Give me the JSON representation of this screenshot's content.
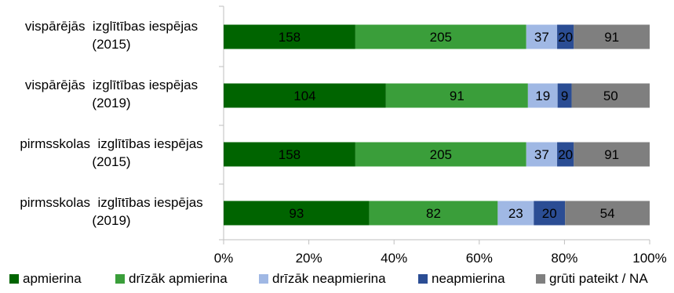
{
  "chart_data": {
    "type": "bar",
    "orientation": "horizontal",
    "stacking": "percent",
    "categories": [
      [
        "vispārējās  izglītības iespējas",
        "(2015)"
      ],
      [
        "vispārējās  izglītības iespējas",
        "(2019)"
      ],
      [
        "pirmsskolas  izglītības iespējas",
        "(2015)"
      ],
      [
        "pirmsskolas  izglītības iespējas",
        "(2019)"
      ]
    ],
    "series": [
      {
        "name": "apmierina",
        "color": "#006400",
        "label_color": "#000000",
        "values": [
          158,
          104,
          158,
          93
        ]
      },
      {
        "name": "drīzāk apmierina",
        "color": "#3a9e3a",
        "label_color": "#000000",
        "values": [
          205,
          91,
          205,
          82
        ]
      },
      {
        "name": "drīzāk neapmierina",
        "color": "#a0b8e4",
        "label_color": "#000000",
        "values": [
          37,
          19,
          37,
          23
        ]
      },
      {
        "name": "neapmierina",
        "color": "#2b4d94",
        "label_color": "#000000",
        "values": [
          20,
          9,
          20,
          20
        ]
      },
      {
        "name": "grūti pateikt / NA",
        "color": "#7f7f7f",
        "label_color": "#000000",
        "values": [
          91,
          50,
          91,
          54
        ]
      }
    ],
    "xlim": [
      0,
      100
    ],
    "x_ticks": [
      {
        "value": 0,
        "label": "0%"
      },
      {
        "value": 20,
        "label": "20%"
      },
      {
        "value": 40,
        "label": "40%"
      },
      {
        "value": 60,
        "label": "60%"
      },
      {
        "value": 80,
        "label": "80%"
      },
      {
        "value": 100,
        "label": "100%"
      }
    ],
    "legend_position": "bottom",
    "grid": false
  }
}
